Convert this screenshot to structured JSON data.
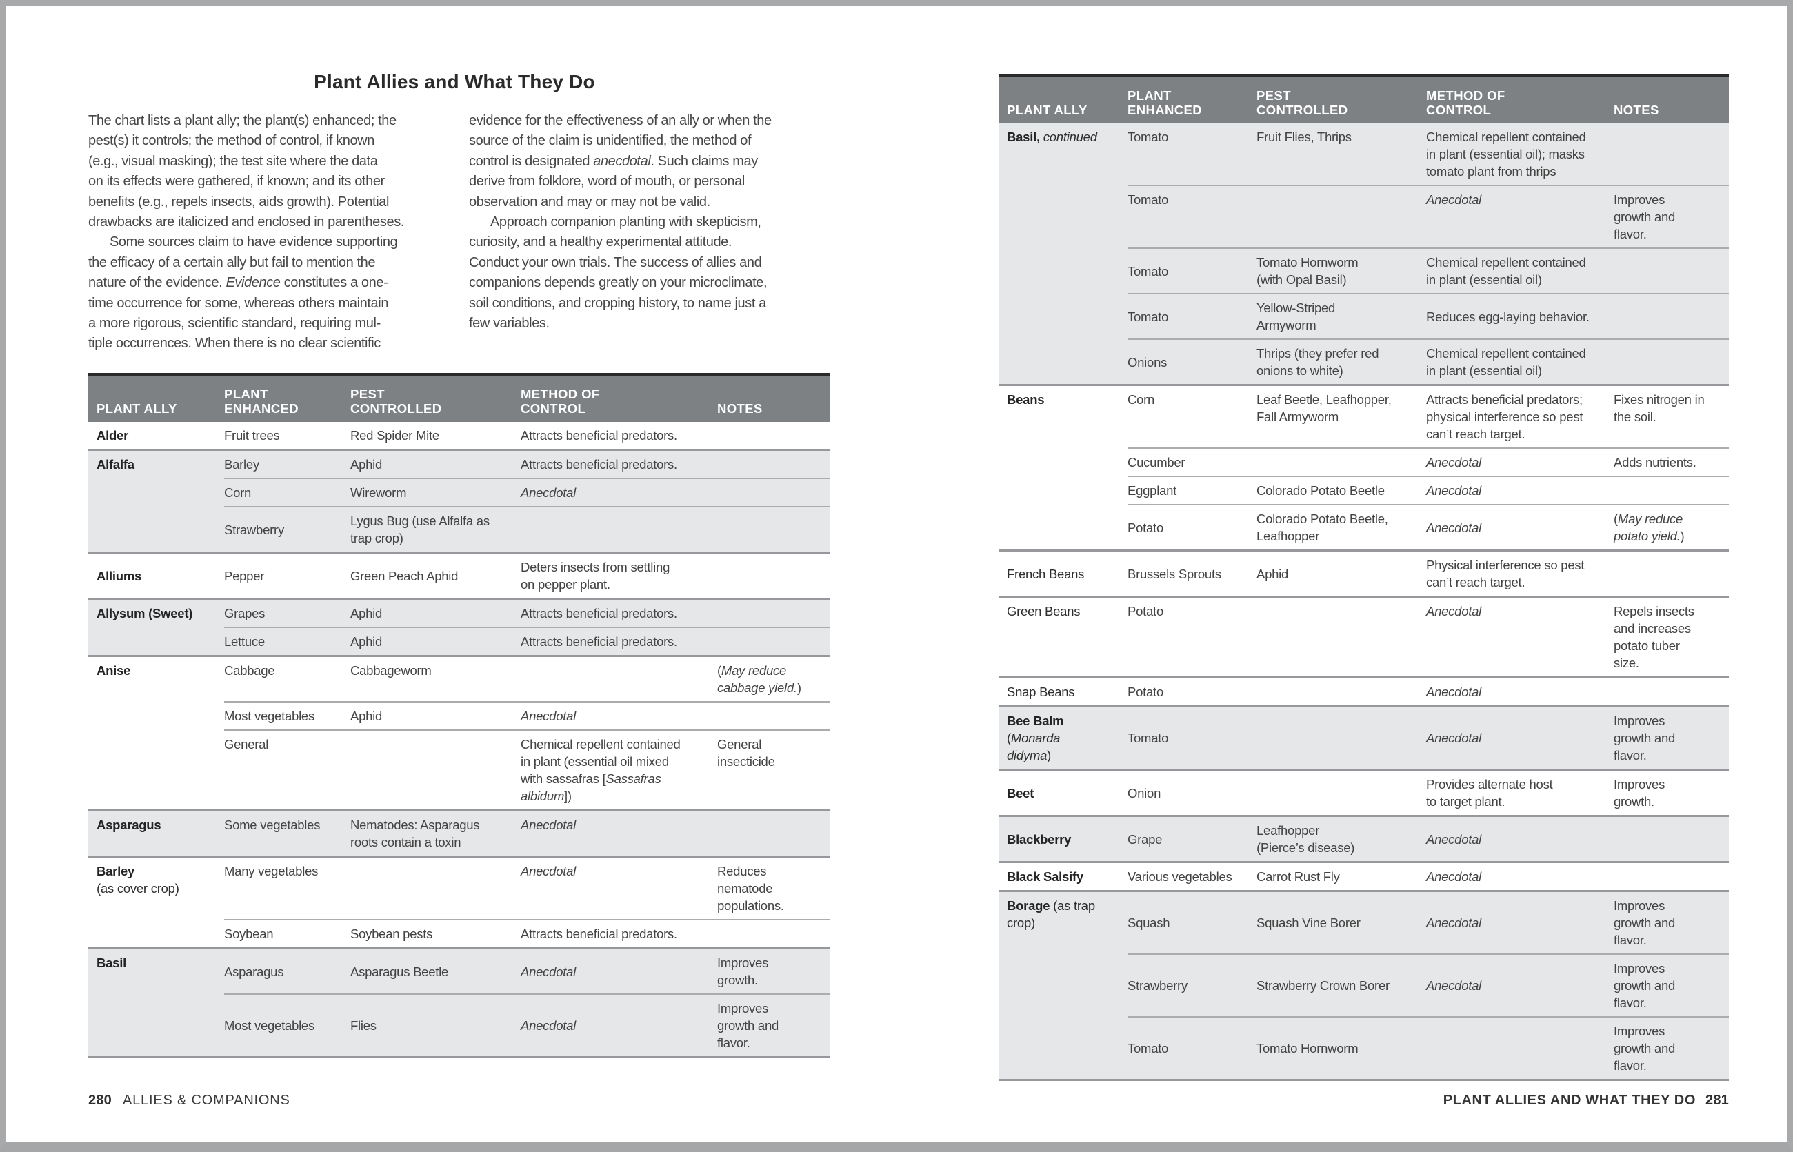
{
  "page": {
    "title": "Plant Allies and What They Do",
    "footer_left": {
      "page_num": "280",
      "label": "ALLIES & COMPANIONS"
    },
    "footer_right": {
      "label": "PLANT ALLIES AND WHAT THEY DO",
      "page_num": "281"
    }
  },
  "colors": {
    "header_bg": "#7e8184",
    "row_stripe": "#e6e7e8",
    "group_rule": "#96989b",
    "inner_rule": "#aaacae",
    "header_top_rule": "#2a2a2a",
    "page_frame": "#a7a9ab",
    "body_text": "#434343"
  },
  "table_headers": [
    "PLANT ALLY",
    "PLANT\nENHANCED",
    "PEST\nCONTROLLED",
    "METHOD OF\nCONTROL",
    "NOTES"
  ],
  "intro": {
    "col1_lines": [
      "The chart lists a plant ally; the plant(s) enhanced; the",
      "pest(s) it controls; the method of control, if known",
      "(e.g., visual masking); the test site where the data",
      "on its effects were gathered, if known; and its other",
      "benefits (e.g., repels insects, aids growth). Potential",
      "drawbacks are italicized and enclosed in parentheses.",
      "      Some sources claim to have evidence supporting",
      "the efficacy of a certain ally but fail to mention the",
      "nature of the evidence. *Evidence* constitutes a one-",
      "time occurrence for some, whereas others maintain",
      "a more rigorous, scientific standard, requiring mul-",
      "tiple occurrences. When there is no clear scientific"
    ],
    "col2_lines": [
      "evidence for the effectiveness of an ally or when the",
      "source of the claim is unidentified, the method of",
      "control is designated *anecdotal*. Such claims may",
      "derive from folklore, word of mouth, or personal",
      "observation and may or may not be valid.",
      "      Approach companion planting with skepticism,",
      "curiosity, and a healthy experimental attitude.",
      "Conduct your own trials. The success of allies and",
      "companions depends greatly on your microclimate,",
      "soil conditions, and cropping history, to name just a",
      "few variables."
    ]
  },
  "tables": {
    "left": {
      "groups": [
        {
          "ally": "**Alder**",
          "shade": "white",
          "rows": [
            {
              "enhanced": "Fruit trees",
              "pest": "Red Spider Mite",
              "method": "Attracts beneficial predators.",
              "notes": ""
            }
          ]
        },
        {
          "ally": "**Alfalfa**",
          "shade": "gray",
          "rows": [
            {
              "enhanced": "Barley",
              "pest": "Aphid",
              "method": "Attracts beneficial predators.",
              "notes": ""
            },
            {
              "enhanced": "Corn",
              "pest": "Wireworm",
              "method": "*Anecdotal*",
              "notes": ""
            },
            {
              "enhanced": "Strawberry",
              "pest": "Lygus Bug (use Alfalfa as\ntrap crop)",
              "method": "",
              "notes": "",
              "valign": "middle"
            }
          ]
        },
        {
          "ally": "**Alliums**",
          "shade": "white",
          "vcenter": true,
          "rows": [
            {
              "enhanced": "Pepper",
              "pest": "Green Peach Aphid",
              "method": "Deters insects from settling\non pepper plant.",
              "notes": "",
              "valign": "middle"
            }
          ]
        },
        {
          "ally": "**Allysum (Sweet)**",
          "shade": "gray",
          "rows": [
            {
              "enhanced": "Grapes",
              "pest": "Aphid",
              "method": "Attracts beneficial predators.",
              "notes": ""
            },
            {
              "enhanced": "Lettuce",
              "pest": "Aphid",
              "method": "Attracts beneficial predators.",
              "notes": ""
            }
          ]
        },
        {
          "ally": "**Anise**",
          "shade": "white",
          "rows": [
            {
              "enhanced": "Cabbage",
              "pest": "Cabbageworm",
              "method": "",
              "notes": "(*May reduce\ncabbage yield.*)"
            },
            {
              "enhanced": "Most vegetables",
              "pest": "Aphid",
              "method": "*Anecdotal*",
              "notes": ""
            },
            {
              "enhanced": "General",
              "pest": "",
              "method": "Chemical repellent contained\nin plant (essential oil mixed\nwith sassafras [*Sassafras\nalbidum*])",
              "notes": "General\ninsecticide"
            }
          ]
        },
        {
          "ally": "**Asparagus**",
          "shade": "gray",
          "rows": [
            {
              "enhanced": "Some vegetables",
              "pest": "Nematodes: Asparagus\nroots contain a toxin",
              "method": "*Anecdotal*",
              "notes": ""
            }
          ]
        },
        {
          "ally": "**Barley**\n(as cover crop)",
          "shade": "white",
          "rows": [
            {
              "enhanced": "Many vegetables",
              "pest": "",
              "method": "*Anecdotal*",
              "notes": "Reduces\nnematode\npopulations."
            },
            {
              "enhanced": "Soybean",
              "pest": "Soybean pests",
              "method": "Attracts beneficial predators.",
              "notes": ""
            }
          ]
        },
        {
          "ally": "**Basil**",
          "shade": "gray",
          "rows": [
            {
              "enhanced": "Asparagus",
              "pest": "Asparagus Beetle",
              "method": "*Anecdotal*",
              "notes": "Improves\ngrowth.",
              "valign": "middle"
            },
            {
              "enhanced": "Most vegetables",
              "pest": "Flies",
              "method": "*Anecdotal*",
              "notes": "Improves\ngrowth and\nflavor.",
              "valign": "middle"
            }
          ]
        }
      ]
    },
    "right": {
      "groups": [
        {
          "ally": "**Basil,** *continued*",
          "shade": "gray",
          "rows": [
            {
              "enhanced": "Tomato",
              "pest": "Fruit Flies, Thrips",
              "method": "Chemical repellent contained\nin plant (essential oil); masks\ntomato plant from thrips",
              "notes": ""
            },
            {
              "enhanced": "Tomato",
              "pest": "",
              "method": "*Anecdotal*",
              "notes": "Improves\ngrowth and\nflavor."
            },
            {
              "enhanced": "Tomato",
              "pest": "Tomato Hornworm\n(with Opal Basil)",
              "method": "Chemical repellent contained\nin plant (essential oil)",
              "notes": "",
              "valign": "middle"
            },
            {
              "enhanced": "Tomato",
              "pest": "Yellow-Striped\nArmyworm",
              "method": "Reduces egg-laying behavior.",
              "notes": "",
              "valign": "middle"
            },
            {
              "enhanced": "Onions",
              "pest": "Thrips (they prefer red\nonions to white)",
              "method": "Chemical repellent contained\nin plant (essential oil)",
              "notes": "",
              "valign": "middle"
            }
          ]
        },
        {
          "ally": "**Beans**",
          "shade": "white",
          "rows": [
            {
              "enhanced": "Corn",
              "pest": "Leaf Beetle, Leafhopper,\nFall Armyworm",
              "method": "Attracts beneficial predators;\nphysical interference so pest\ncan’t reach target.",
              "notes": "Fixes nitrogen in\nthe soil."
            },
            {
              "enhanced": "Cucumber",
              "pest": "",
              "method": "*Anecdotal*",
              "notes": "Adds nutrients."
            },
            {
              "enhanced": "Eggplant",
              "pest": "Colorado Potato Beetle",
              "method": "*Anecdotal*",
              "notes": ""
            },
            {
              "enhanced": "Potato",
              "pest": "Colorado Potato Beetle,\nLeafhopper",
              "method": "*Anecdotal*",
              "notes": "(*May reduce\npotato yield.*)",
              "valign": "middle"
            }
          ]
        },
        {
          "ally": "French Beans",
          "shade": "white",
          "vcenter": true,
          "rows": [
            {
              "enhanced": "Brussels Sprouts",
              "pest": "Aphid",
              "method": "Physical interference so pest\ncan’t reach target.",
              "notes": "",
              "valign": "middle"
            }
          ]
        },
        {
          "ally": "Green Beans",
          "shade": "white",
          "rows": [
            {
              "enhanced": "Potato",
              "pest": "",
              "method": "*Anecdotal*",
              "notes": "Repels insects\nand increases\npotato tuber\nsize."
            }
          ]
        },
        {
          "ally": "Snap Beans",
          "shade": "white",
          "rows": [
            {
              "enhanced": "Potato",
              "pest": "",
              "method": "*Anecdotal*",
              "notes": ""
            }
          ]
        },
        {
          "ally": "**Bee Balm**\n(*Monarda\ndidyma*)",
          "shade": "gray",
          "rows": [
            {
              "enhanced": "Tomato",
              "pest": "",
              "method": "*Anecdotal*",
              "notes": "Improves\ngrowth and\nflavor.",
              "valign": "middle"
            }
          ]
        },
        {
          "ally": "**Beet**",
          "shade": "white",
          "vcenter": true,
          "rows": [
            {
              "enhanced": "Onion",
              "pest": "",
              "method": "Provides alternate host\nto target plant.",
              "notes": "Improves\ngrowth.",
              "valign": "middle"
            }
          ]
        },
        {
          "ally": "**Blackberry**",
          "shade": "gray",
          "vcenter": true,
          "rows": [
            {
              "enhanced": "Grape",
              "pest": "Leafhopper\n(Pierce’s disease)",
              "method": "*Anecdotal*",
              "notes": "",
              "valign": "middle"
            }
          ]
        },
        {
          "ally": "**Black Salsify**",
          "shade": "white",
          "rows": [
            {
              "enhanced": "Various vegetables",
              "pest": "Carrot Rust Fly",
              "method": "*Anecdotal*",
              "notes": ""
            }
          ]
        },
        {
          "ally": "**Borage** (as trap\ncrop)",
          "shade": "gray",
          "rows": [
            {
              "enhanced": "Squash",
              "pest": "Squash Vine Borer",
              "method": "*Anecdotal*",
              "notes": "Improves\ngrowth and\nflavor.",
              "valign": "middle"
            },
            {
              "enhanced": "Strawberry",
              "pest": "Strawberry Crown Borer",
              "method": "*Anecdotal*",
              "notes": "Improves\ngrowth and\nflavor.",
              "valign": "middle"
            },
            {
              "enhanced": "Tomato",
              "pest": "Tomato Hornworm",
              "method": "",
              "notes": "Improves\ngrowth and\nflavor.",
              "valign": "middle"
            }
          ]
        }
      ]
    }
  }
}
